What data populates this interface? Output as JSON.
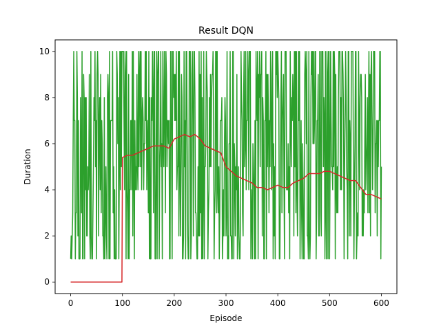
{
  "chart_data": {
    "type": "line",
    "title": "Result DQN",
    "xlabel": "Episode",
    "ylabel": "Duration",
    "xlim": [
      -30,
      630
    ],
    "ylim": [
      -0.5,
      10.5
    ],
    "xticks": [
      0,
      100,
      200,
      300,
      400,
      500,
      600
    ],
    "yticks": [
      0,
      2,
      4,
      6,
      8,
      10
    ],
    "grid": false,
    "legend": "none",
    "series": [
      {
        "color": "#2ca02c",
        "description": "episode durations, integer values 1-10, one point per episode (0-600), noisy",
        "x_range": [
          0,
          600
        ],
        "value_range": [
          1,
          10
        ]
      },
      {
        "color": "#d62728",
        "description": "100-episode moving average",
        "x": [
          0,
          99,
          100,
          110,
          120,
          130,
          140,
          150,
          160,
          170,
          180,
          190,
          200,
          210,
          220,
          230,
          240,
          250,
          260,
          270,
          280,
          290,
          300,
          310,
          320,
          330,
          340,
          350,
          360,
          370,
          380,
          390,
          400,
          410,
          420,
          430,
          440,
          450,
          460,
          470,
          480,
          490,
          500,
          510,
          520,
          530,
          540,
          550,
          560,
          570,
          580,
          590,
          600
        ],
        "values": [
          0,
          0,
          5.4,
          5.5,
          5.5,
          5.6,
          5.7,
          5.8,
          5.9,
          5.9,
          5.9,
          5.8,
          6.2,
          6.3,
          6.4,
          6.3,
          6.4,
          6.2,
          5.9,
          5.8,
          5.7,
          5.6,
          5.0,
          4.8,
          4.6,
          4.5,
          4.4,
          4.3,
          4.1,
          4.1,
          4.0,
          4.1,
          4.2,
          4.1,
          4.1,
          4.3,
          4.4,
          4.5,
          4.7,
          4.7,
          4.7,
          4.8,
          4.8,
          4.7,
          4.6,
          4.5,
          4.4,
          4.4,
          4.1,
          3.8,
          3.8,
          3.7,
          3.6
        ]
      }
    ]
  }
}
